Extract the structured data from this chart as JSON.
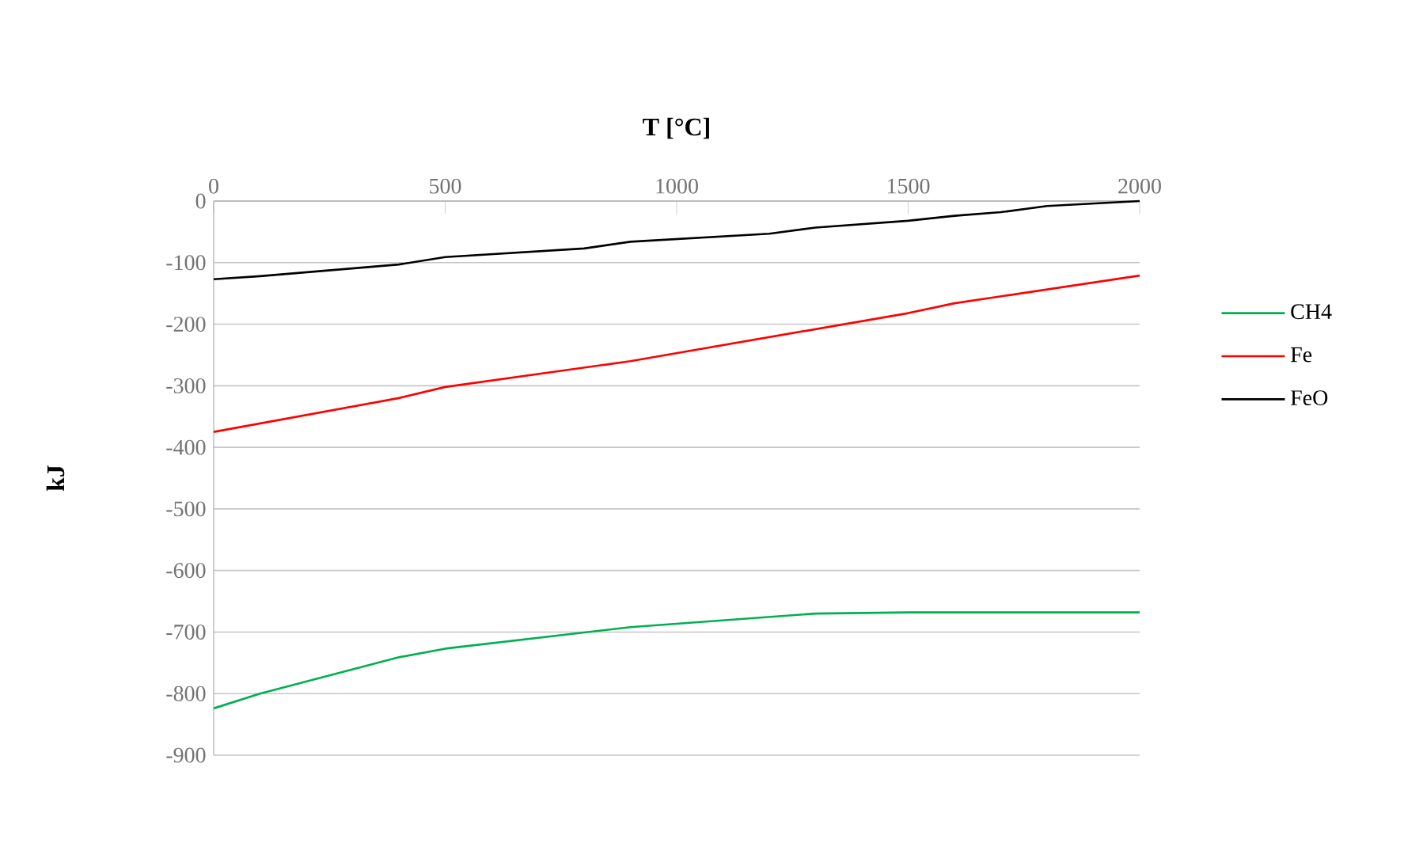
{
  "chart_data": {
    "type": "line",
    "xlabel": "T [°C]",
    "ylabel": "kJ",
    "xlim": [
      0,
      2000
    ],
    "xticks": [
      0,
      500,
      1000,
      1500,
      2000
    ],
    "ylim": [
      -900,
      0
    ],
    "yticks": [
      -900,
      -800,
      -700,
      -600,
      -500,
      -400,
      -300,
      -200,
      -100,
      0
    ],
    "grid": "y",
    "legend": "right",
    "line_style": "solid",
    "series": [
      {
        "name": "CH4",
        "color": "#00b050",
        "x": [
          0,
          100,
          400,
          500,
          900,
          1300,
          1500,
          2000
        ],
        "values": [
          -824,
          -800,
          -741,
          -727,
          -692,
          -670,
          -668,
          -668
        ]
      },
      {
        "name": "Fe",
        "color": "#ff0000",
        "x": [
          0,
          400,
          500,
          900,
          1200,
          1500,
          1600,
          2000
        ],
        "values": [
          -375,
          -320,
          -302,
          -260,
          -221,
          -182,
          -166,
          -121
        ]
      },
      {
        "name": "FeO",
        "color": "#000000",
        "x": [
          0,
          100,
          400,
          500,
          800,
          900,
          1200,
          1300,
          1500,
          1600,
          1700,
          1800,
          2000
        ],
        "values": [
          -127,
          -122,
          -103,
          -91,
          -77,
          -66,
          -53,
          -43,
          -32,
          -24,
          -18,
          -8,
          0
        ]
      }
    ]
  }
}
